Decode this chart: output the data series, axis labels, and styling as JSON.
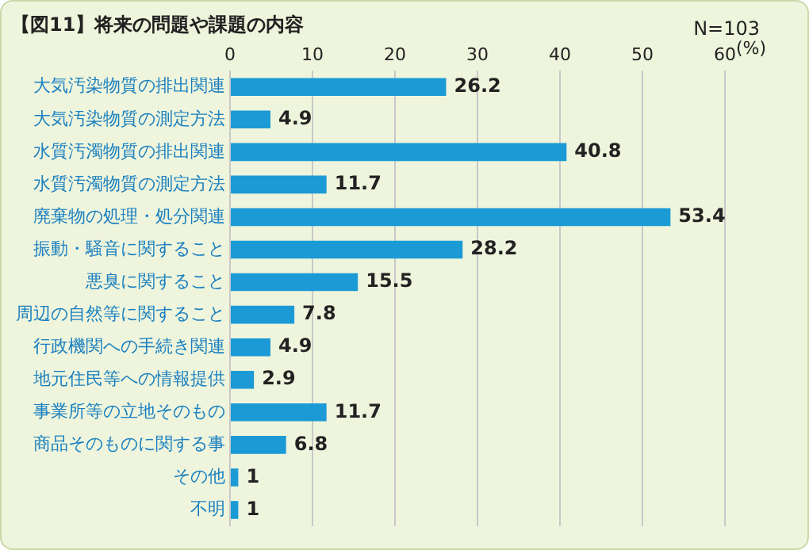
{
  "chart_data": {
    "type": "bar",
    "orientation": "horizontal",
    "title": "【図11】将来の問題や課題の内容",
    "xlabel": "(%)",
    "annotations": [
      "N=103"
    ],
    "categories": [
      "大気汚染物質の排出関連",
      "大気汚染物質の測定方法",
      "水質汚濁物質の排出関連",
      "水質汚濁物質の測定方法",
      "廃棄物の処理・処分関連",
      "振動・騒音に関すること",
      "悪臭に関すること",
      "周辺の自然等に関すること",
      "行政機関への手続き関連",
      "地元住民等への情報提供",
      "事業所等の立地そのもの",
      "商品そのものに関する事",
      "その他",
      "不明"
    ],
    "values": [
      26.2,
      4.9,
      40.8,
      11.7,
      53.4,
      28.2,
      15.5,
      7.8,
      4.9,
      2.9,
      11.7,
      6.8,
      1,
      1
    ],
    "color": "#1b9ad6",
    "xlim": [
      0,
      60
    ],
    "xticks": [
      0,
      10,
      20,
      30,
      40,
      50,
      60
    ],
    "grid": "x",
    "data_labels": true
  }
}
